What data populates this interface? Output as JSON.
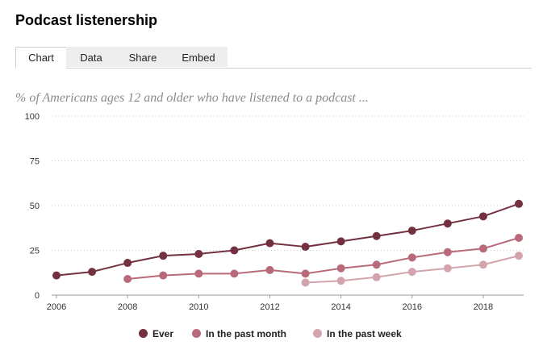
{
  "page": {
    "title": "Podcast listenership"
  },
  "tabs": [
    {
      "label": "Chart",
      "active": true
    },
    {
      "label": "Data",
      "active": false
    },
    {
      "label": "Share",
      "active": false
    },
    {
      "label": "Embed",
      "active": false
    }
  ],
  "chart_data": {
    "type": "line",
    "title": "",
    "subtitle": "% of Americans ages 12 and older who have listened to a podcast ...",
    "xlabel": "",
    "ylabel": "",
    "xlim": [
      2006,
      2019
    ],
    "ylim": [
      0,
      100
    ],
    "x_ticks": [
      2006,
      2008,
      2010,
      2012,
      2014,
      2016,
      2018
    ],
    "y_ticks": [
      0,
      25,
      50,
      75,
      100
    ],
    "grid": "horizontal dotted",
    "legend": "bottom",
    "series": [
      {
        "name": "Ever",
        "color": "#73303f",
        "x": [
          2006,
          2007,
          2008,
          2009,
          2010,
          2011,
          2012,
          2013,
          2014,
          2015,
          2016,
          2017,
          2018,
          2019
        ],
        "y": [
          11,
          13,
          18,
          22,
          23,
          25,
          29,
          27,
          30,
          33,
          36,
          40,
          44,
          51
        ]
      },
      {
        "name": "In the past month",
        "color": "#b86a7a",
        "x": [
          2008,
          2009,
          2010,
          2011,
          2012,
          2013,
          2014,
          2015,
          2016,
          2017,
          2018,
          2019
        ],
        "y": [
          9,
          11,
          12,
          12,
          14,
          12,
          15,
          17,
          21,
          24,
          26,
          32
        ]
      },
      {
        "name": "In the past week",
        "color": "#d4a4ad",
        "x": [
          2013,
          2014,
          2015,
          2016,
          2017,
          2018,
          2019
        ],
        "y": [
          7,
          8,
          10,
          13,
          15,
          17,
          22
        ]
      }
    ]
  }
}
